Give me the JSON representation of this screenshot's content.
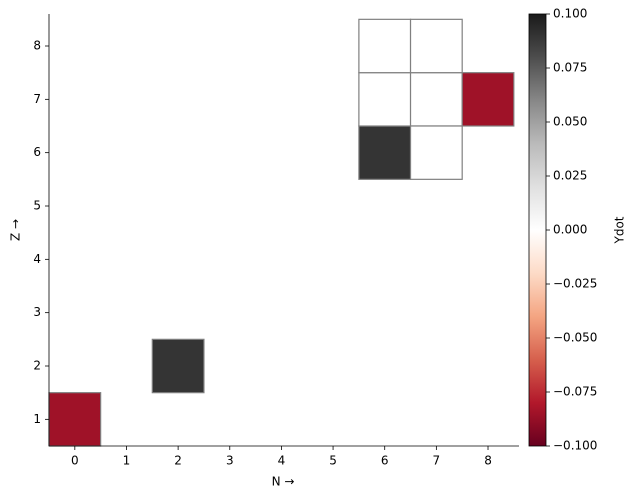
{
  "chart_data": {
    "type": "heatmap",
    "xlabel": "N →",
    "ylabel": "Z →",
    "colorbar_label": "Ydot",
    "x": [
      0,
      2,
      6,
      6,
      7,
      6,
      7,
      7,
      8
    ],
    "y": [
      1,
      2,
      6,
      7,
      7,
      8,
      8,
      6,
      7
    ],
    "values": [
      -0.085,
      0.09,
      0.09,
      0,
      0,
      0,
      0,
      0,
      -0.085
    ],
    "edge_color": "#808080",
    "xlim": [
      -0.5,
      8.6
    ],
    "ylim": [
      0.5,
      8.6
    ],
    "xticks": [
      0,
      1,
      2,
      3,
      4,
      5,
      6,
      7,
      8
    ],
    "yticks": [
      1,
      2,
      3,
      4,
      5,
      6,
      7,
      8
    ],
    "clim": [
      -0.1,
      0.1
    ],
    "cmap_colors": [
      "#67001f",
      "#b2182b",
      "#d6604d",
      "#f4a582",
      "#fddbc7",
      "#ffffff",
      "#e0e0e0",
      "#bababa",
      "#878787",
      "#4d4d4d",
      "#1a1a1a"
    ],
    "cticks": [
      {
        "value": -0.1,
        "label": "−0.100"
      },
      {
        "value": -0.075,
        "label": "−0.075"
      },
      {
        "value": -0.05,
        "label": "−0.050"
      },
      {
        "value": -0.025,
        "label": "−0.025"
      },
      {
        "value": 0,
        "label": "0.000"
      },
      {
        "value": 0.025,
        "label": "0.025"
      },
      {
        "value": 0.05,
        "label": "0.050"
      },
      {
        "value": 0.075,
        "label": "0.075"
      },
      {
        "value": 0.1,
        "label": "0.100"
      }
    ]
  }
}
